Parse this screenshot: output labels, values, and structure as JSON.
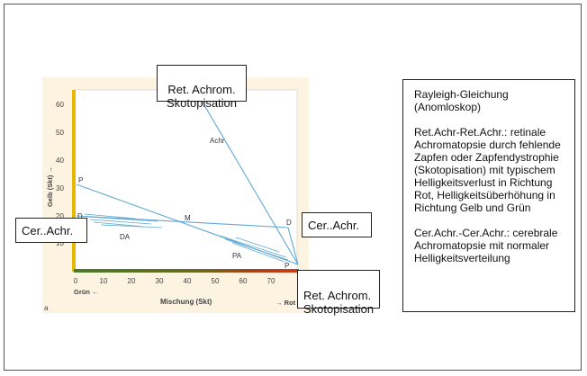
{
  "diagram": {
    "y_axis": {
      "label": "Gelb (Skt) →",
      "ticks": [
        "60",
        "50",
        "40",
        "30",
        "20",
        "10"
      ]
    },
    "x_axis": {
      "label": "Mischung (Skt)",
      "ticks": [
        "0",
        "10",
        "20",
        "30",
        "40",
        "50",
        "60",
        "70"
      ],
      "left_end": "Grün ←",
      "right_end": "→ Rot"
    },
    "panel_letter": "a",
    "points": {
      "p_left": "P",
      "d_left": "D",
      "m": "M",
      "d_right": "D",
      "p_right": "P",
      "achr": "Achr",
      "da": "DA",
      "pa": "PA"
    },
    "colors": {
      "background": "#fdf3e1",
      "plot": "#ffffff",
      "line": "#5fa8d3",
      "yellow_axis": "#e6b800",
      "red_axis": "#d13a16",
      "green_axis": "#4a7a2a"
    }
  },
  "boxes": {
    "top_achrom": "Ret. Achrom.\nSkotopisation",
    "bottom_achrom": "Ret. Achrom.\nSkotopisation",
    "cer_left": "Cer..Achr.",
    "cer_right": "Cer..Achr."
  },
  "legend": {
    "title": "Rayleigh-Gleichung\n(Anomloskop)",
    "ret_text": "Ret.Achr-Ret.Achr.: retinale Achromatopsie durch fehlende Zapfen oder Zapfendystrophie (Skotopisation) mit typischem Helligkeitsverlust in Richtung Rot, Helligkeitsüberhöhung in Richtung Gelb und Grün",
    "cer_text": "Cer.Achr.-Cer.Achr.: cerebrale Achromatopsie mit normaler Helligkeitsverteilung"
  }
}
